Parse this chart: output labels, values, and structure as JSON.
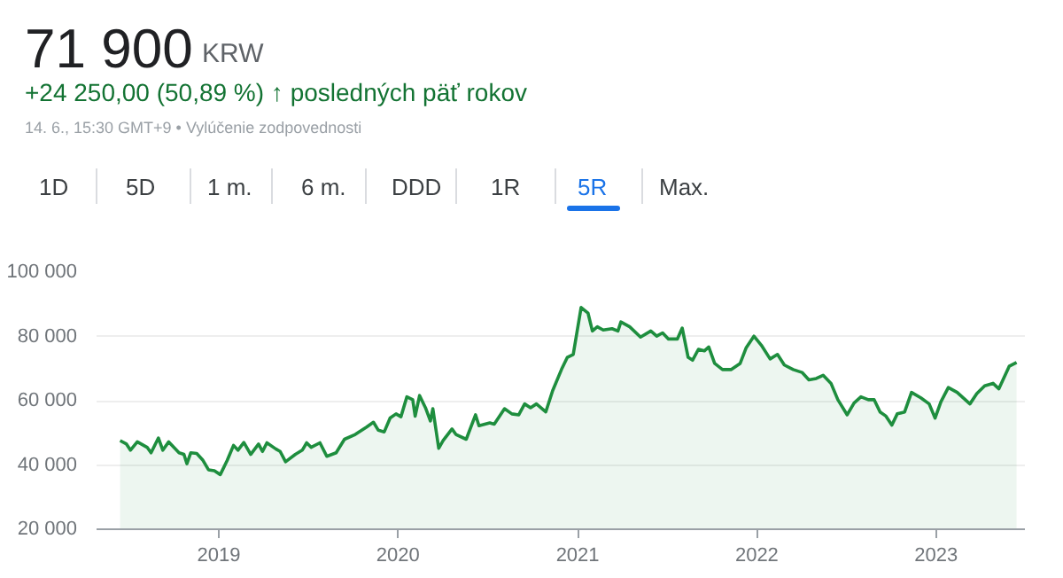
{
  "chart_data": {
    "type": "area",
    "title": "71 900",
    "subtitle": "+24 250,00 (50,89 %) ↑ posledných päť rokov",
    "annotations": [
      "KRW",
      "14. 6., 15:30 GMT+9 • Vylúčenie zodpovednosti",
      "1D",
      "5D",
      "1 m.",
      "6 m.",
      "DDD",
      "1R",
      "5R",
      "Max."
    ],
    "color": "#1e8e3e",
    "x": [
      "2018-06-14",
      "2018-06-27",
      "2018-07-05",
      "2018-07-19",
      "2018-08-08",
      "2018-08-16",
      "2018-08-31",
      "2018-09-09",
      "2018-09-21",
      "2018-10-12",
      "2018-10-22",
      "2018-10-28",
      "2018-11-05",
      "2018-11-17",
      "2018-11-29",
      "2018-12-11",
      "2018-12-23",
      "2019-01-04",
      "2019-01-18",
      "2019-01-31",
      "2019-02-09",
      "2019-02-21",
      "2019-03-07",
      "2019-03-23",
      "2019-03-31",
      "2019-04-09",
      "2019-04-27",
      "2019-05-06",
      "2019-05-17",
      "2019-06-06",
      "2019-06-20",
      "2019-06-29",
      "2019-07-08",
      "2019-07-26",
      "2019-08-09",
      "2019-08-28",
      "2019-09-14",
      "2019-10-06",
      "2019-10-29",
      "2019-11-12",
      "2019-11-22",
      "2019-12-04",
      "2019-12-16",
      "2019-12-28",
      "2020-01-07",
      "2020-01-19",
      "2020-01-31",
      "2020-02-05",
      "2020-02-14",
      "2020-02-26",
      "2020-03-07",
      "2020-03-12",
      "2020-03-24",
      "2020-04-02",
      "2020-04-20",
      "2020-04-28",
      "2020-05-19",
      "2020-06-07",
      "2020-06-14",
      "2020-07-06",
      "2020-07-15",
      "2020-08-05",
      "2020-08-20",
      "2020-09-03",
      "2020-09-15",
      "2020-09-27",
      "2020-10-09",
      "2020-10-28",
      "2020-11-11",
      "2020-11-29",
      "2020-12-11",
      "2020-12-23",
      "2021-01-08",
      "2021-01-22",
      "2021-01-31",
      "2021-02-10",
      "2021-02-22",
      "2021-03-12",
      "2021-03-24",
      "2021-03-30",
      "2021-04-17",
      "2021-05-09",
      "2021-05-30",
      "2021-06-11",
      "2021-06-23",
      "2021-07-05",
      "2021-07-23",
      "2021-08-02",
      "2021-08-14",
      "2021-08-23",
      "2021-09-04",
      "2021-09-16",
      "2021-09-25",
      "2021-10-07",
      "2021-10-23",
      "2021-11-10",
      "2021-11-28",
      "2021-12-10",
      "2021-12-26",
      "2022-01-10",
      "2022-01-28",
      "2022-02-12",
      "2022-02-26",
      "2022-03-16",
      "2022-04-03",
      "2022-04-17",
      "2022-05-02",
      "2022-05-16",
      "2022-06-01",
      "2022-06-15",
      "2022-07-04",
      "2022-07-18",
      "2022-08-01",
      "2022-08-16",
      "2022-08-28",
      "2022-09-09",
      "2022-09-21",
      "2022-10-03",
      "2022-10-14",
      "2022-10-29",
      "2022-11-12",
      "2022-12-01",
      "2022-12-18",
      "2022-12-30",
      "2023-01-11",
      "2023-01-26",
      "2023-02-13",
      "2023-03-11",
      "2023-03-25",
      "2023-04-10",
      "2023-04-27",
      "2023-05-09",
      "2023-05-30",
      "2023-06-14"
    ],
    "values": [
      47600,
      46500,
      44600,
      47200,
      45500,
      43800,
      48400,
      44600,
      47200,
      43800,
      43300,
      40400,
      43800,
      43600,
      41600,
      38500,
      38200,
      37000,
      41400,
      46100,
      44600,
      47000,
      43300,
      46500,
      44200,
      46900,
      45000,
      44200,
      41000,
      43300,
      44600,
      46900,
      45500,
      46900,
      42700,
      43800,
      48000,
      49500,
      51800,
      53300,
      50800,
      50300,
      54600,
      55900,
      55000,
      61200,
      60300,
      55200,
      61600,
      57800,
      53700,
      57500,
      45200,
      47600,
      51200,
      49500,
      48000,
      55600,
      52200,
      53100,
      52700,
      57500,
      55900,
      55600,
      59000,
      57800,
      59000,
      56500,
      63100,
      69700,
      73500,
      74400,
      89000,
      87300,
      81700,
      83000,
      82000,
      82400,
      81700,
      84500,
      83000,
      79800,
      81700,
      80100,
      81100,
      79200,
      79200,
      82600,
      73500,
      72600,
      76000,
      75500,
      76700,
      71600,
      69700,
      69700,
      71600,
      76400,
      80100,
      77300,
      73000,
      74400,
      71100,
      69700,
      68800,
      66500,
      66900,
      67900,
      65400,
      60300,
      55600,
      59300,
      61200,
      60300,
      60300,
      56500,
      55200,
      52400,
      55900,
      56500,
      62600,
      60900,
      59000,
      54600,
      59700,
      64100,
      62600,
      59000,
      62200,
      64600,
      65400,
      63700,
      70700,
      71900
    ],
    "xlim": [
      "2018-04-27",
      "2023-07-01"
    ],
    "xticks": [
      {
        "value": "2019-01-01",
        "label": "2019"
      },
      {
        "value": "2020-01-01",
        "label": "2020"
      },
      {
        "value": "2021-01-01",
        "label": "2021"
      },
      {
        "value": "2022-01-01",
        "label": "2022"
      },
      {
        "value": "2023-01-01",
        "label": "2023"
      }
    ],
    "ylim": [
      20000,
      100000
    ],
    "yticks": [
      {
        "value": 20000,
        "label": "20 000"
      },
      {
        "value": 40000,
        "label": "40 000"
      },
      {
        "value": 60000,
        "label": "60 000"
      },
      {
        "value": 80000,
        "label": "80 000"
      },
      {
        "value": 100000,
        "label": "100 000"
      }
    ],
    "grid": "y"
  }
}
